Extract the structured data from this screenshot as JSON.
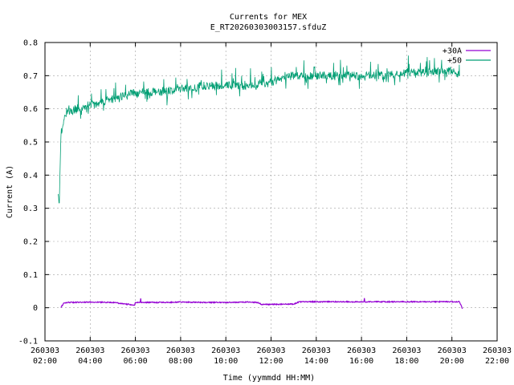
{
  "chart_data": {
    "type": "line",
    "title": "Currents for MEX",
    "subtitle": "E_RT20260303003157.sfduZ",
    "xlabel": "Time (yymmdd HH:MM)",
    "ylabel": "Current (A)",
    "xlim": [
      "260303 02:00",
      "260303 22:00"
    ],
    "ylim": [
      -0.1,
      0.8
    ],
    "grid": true,
    "legend_position": "top-right",
    "x_ticks": [
      {
        "date": "260303",
        "time": "02:00"
      },
      {
        "date": "260303",
        "time": "04:00"
      },
      {
        "date": "260303",
        "time": "06:00"
      },
      {
        "date": "260303",
        "time": "08:00"
      },
      {
        "date": "260303",
        "time": "10:00"
      },
      {
        "date": "260303",
        "time": "12:00"
      },
      {
        "date": "260303",
        "time": "14:00"
      },
      {
        "date": "260303",
        "time": "16:00"
      },
      {
        "date": "260303",
        "time": "18:00"
      },
      {
        "date": "260303",
        "time": "20:00"
      },
      {
        "date": "260303",
        "time": "22:00"
      }
    ],
    "y_ticks": [
      "-0.1",
      "0",
      "0.1",
      "0.2",
      "0.3",
      "0.4",
      "0.5",
      "0.6",
      "0.7",
      "0.8"
    ],
    "series": [
      {
        "name": "+30A",
        "color": "#9400d3",
        "time": [
          "02:42",
          "02:50",
          "03:00",
          "04:00",
          "05:00",
          "05:50",
          "05:58",
          "06:00",
          "07:00",
          "08:00",
          "09:00",
          "10:00",
          "11:00",
          "11:25",
          "11:35",
          "12:00",
          "13:00",
          "13:15",
          "14:00",
          "15:00",
          "16:00",
          "17:00",
          "18:00",
          "19:00",
          "20:00",
          "20:20",
          "20:28"
        ],
        "current": [
          0.0,
          0.015,
          0.016,
          0.017,
          0.016,
          0.009,
          0.008,
          0.016,
          0.016,
          0.017,
          0.016,
          0.016,
          0.017,
          0.016,
          0.01,
          0.01,
          0.011,
          0.018,
          0.018,
          0.018,
          0.018,
          0.018,
          0.018,
          0.018,
          0.018,
          0.018,
          -0.003
        ]
      },
      {
        "name": "+50",
        "color": "#009e73",
        "time": [
          "02:35",
          "02:38",
          "02:42",
          "02:50",
          "03:00",
          "03:30",
          "04:00",
          "04:30",
          "05:00",
          "05:30",
          "06:00",
          "07:00",
          "08:00",
          "09:00",
          "10:00",
          "11:00",
          "12:00",
          "12:30",
          "13:00",
          "14:00",
          "15:00",
          "16:00",
          "17:00",
          "18:00",
          "19:00",
          "20:00",
          "20:20"
        ],
        "current": [
          0.35,
          0.3,
          0.52,
          0.57,
          0.59,
          0.6,
          0.61,
          0.62,
          0.63,
          0.64,
          0.65,
          0.65,
          0.66,
          0.67,
          0.67,
          0.67,
          0.68,
          0.69,
          0.7,
          0.7,
          0.7,
          0.7,
          0.7,
          0.71,
          0.71,
          0.715,
          0.7
        ]
      }
    ]
  }
}
